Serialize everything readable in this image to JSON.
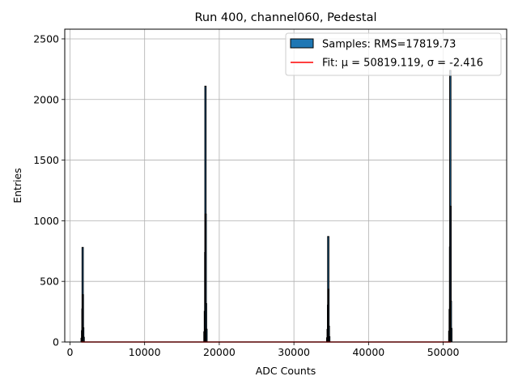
{
  "chart_data": {
    "type": "histogram",
    "title": "Run 400, channel060, Pedestal",
    "xlabel": "ADC Counts",
    "ylabel": "Entries",
    "xlim": [
      -700,
      58500
    ],
    "ylim": [
      0,
      2580
    ],
    "xticks": [
      0,
      10000,
      20000,
      30000,
      40000,
      50000
    ],
    "yticks": [
      0,
      500,
      1000,
      1500,
      2000,
      2500
    ],
    "xtick_labels": [
      "0",
      "10000",
      "20000",
      "30000",
      "40000",
      "50000"
    ],
    "ytick_labels": [
      "0",
      "500",
      "1000",
      "1500",
      "2000",
      "2500"
    ],
    "grid": true,
    "legend_position": "top-right",
    "series": [
      {
        "name": "Samples: RMS=17819.73",
        "kind": "histogram",
        "face_color": "#1f77b4",
        "edge_color": "#000000",
        "peaks": [
          {
            "center": 1700,
            "height": 780
          },
          {
            "center": 18150,
            "height": 2110
          },
          {
            "center": 34600,
            "height": 870
          },
          {
            "center": 50950,
            "height": 2240
          }
        ]
      },
      {
        "name": "Fit: μ = 50819.119, σ = -2.416",
        "kind": "line",
        "color": "#ff0000",
        "x": [
          1500,
          51000
        ],
        "y": [
          0,
          0
        ]
      }
    ]
  }
}
